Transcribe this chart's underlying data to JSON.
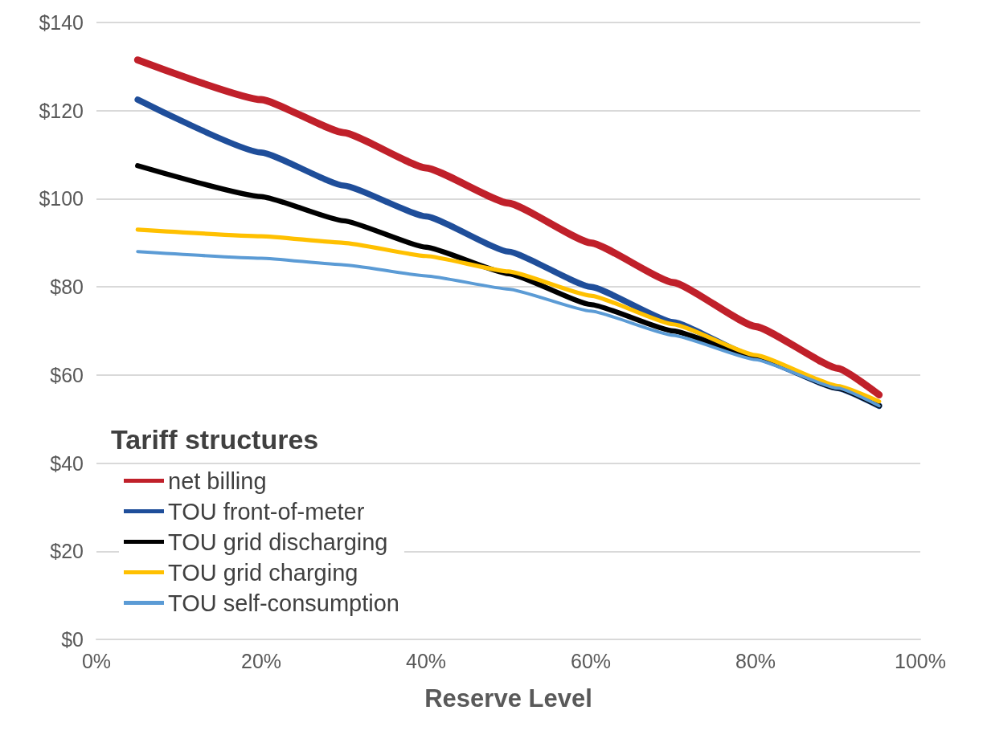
{
  "chart_data": {
    "type": "line",
    "xlabel": "Reserve Level",
    "legend_title": "Tariff structures",
    "x": [
      5,
      20,
      30,
      40,
      50,
      60,
      70,
      80,
      90,
      95
    ],
    "series": [
      {
        "name": "net billing",
        "color": "#c0202a",
        "values": [
          131.5,
          122.5,
          115,
          107,
          99,
          90,
          81,
          71,
          61.5,
          55.5
        ]
      },
      {
        "name": "TOU front-of-meter",
        "color": "#1f4e9a",
        "values": [
          122.5,
          110.5,
          103,
          96,
          88,
          80,
          72,
          64,
          57,
          53
        ]
      },
      {
        "name": "TOU grid discharging",
        "color": "#000000",
        "values": [
          107.5,
          100.5,
          95,
          89,
          83,
          76,
          70,
          64,
          57,
          53
        ]
      },
      {
        "name": "TOU grid charging",
        "color": "#ffc000",
        "values": [
          93,
          91.5,
          90,
          87,
          83.5,
          78,
          71.5,
          64.5,
          57.5,
          54
        ]
      },
      {
        "name": "TOU self-consumption",
        "color": "#5b9bd5",
        "values": [
          88,
          86.5,
          85,
          82.5,
          79.5,
          74.5,
          69,
          63.5,
          57,
          53
        ]
      }
    ],
    "xlim": [
      0,
      100
    ],
    "xticks": [
      {
        "value": 0,
        "label": "0%"
      },
      {
        "value": 20,
        "label": "20%"
      },
      {
        "value": 40,
        "label": "40%"
      },
      {
        "value": 60,
        "label": "60%"
      },
      {
        "value": 80,
        "label": "80%"
      },
      {
        "value": 100,
        "label": "100%"
      }
    ],
    "ylim": [
      0,
      140
    ],
    "yticks": [
      {
        "value": 0,
        "label": "$0"
      },
      {
        "value": 20,
        "label": "$20"
      },
      {
        "value": 40,
        "label": "$40"
      },
      {
        "value": 60,
        "label": "$60"
      },
      {
        "value": 80,
        "label": "$80"
      },
      {
        "value": 100,
        "label": "$100"
      },
      {
        "value": 120,
        "label": "$120"
      },
      {
        "value": 140,
        "label": "$140"
      }
    ],
    "grid": "y",
    "legend": "bottom left",
    "marker": "none",
    "line_style": "solid"
  }
}
